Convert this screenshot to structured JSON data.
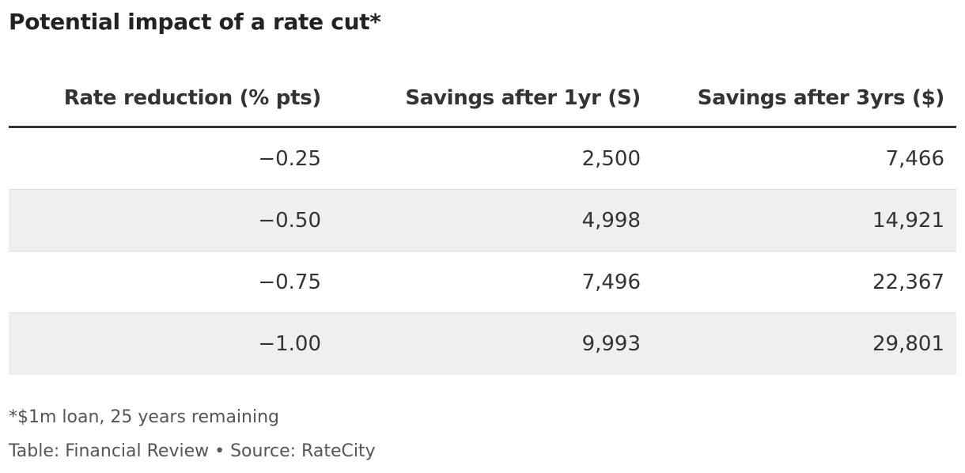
{
  "title": "Potential impact of a rate cut*",
  "chart_data": {
    "type": "table",
    "columns": [
      "Rate reduction (% pts)",
      "Savings after 1yr (S)",
      "Savings after 3yrs ($)"
    ],
    "rows": [
      [
        "−0.25",
        "2,500",
        "7,466"
      ],
      [
        "−0.50",
        "4,998",
        "14,921"
      ],
      [
        "−0.75",
        "7,496",
        "22,367"
      ],
      [
        "−1.00",
        "9,993",
        "29,801"
      ]
    ]
  },
  "footnote": "*$1m loan, 25 years remaining",
  "credit": "Table: Financial Review • Source: RateCity",
  "colors": {
    "row_shade": "#efefef",
    "header_rule": "#333333",
    "row_divider": "#dddddd"
  }
}
